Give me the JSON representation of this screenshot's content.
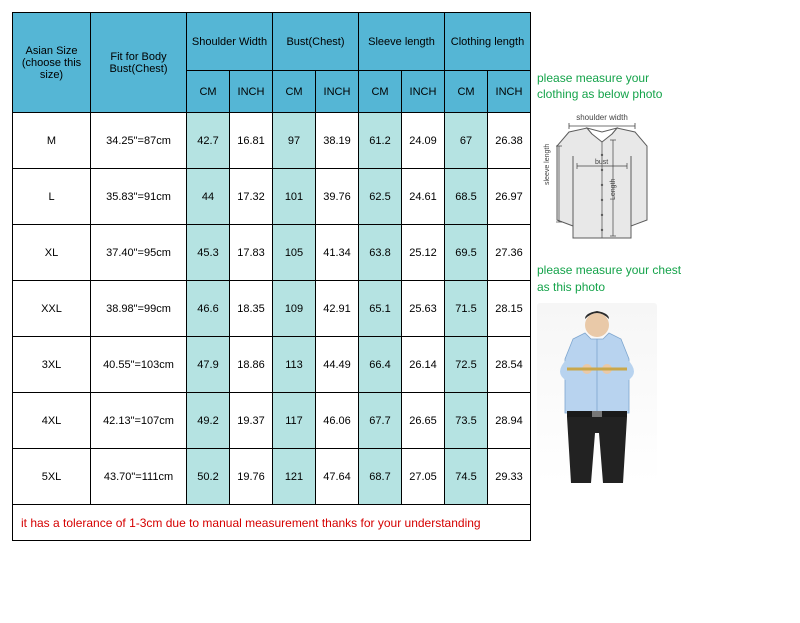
{
  "table": {
    "headers": {
      "asian_size": "Asian Size (choose this size)",
      "fit_for": "Fit for Body Bust(Chest)",
      "groups": [
        {
          "label": "Shoulder Width",
          "cm": "CM",
          "inch": "INCH"
        },
        {
          "label": "Bust(Chest)",
          "cm": "CM",
          "inch": "INCH"
        },
        {
          "label": "Sleeve length",
          "cm": "CM",
          "inch": "INCH"
        },
        {
          "label": "Clothing length",
          "cm": "CM",
          "inch": "INCH"
        }
      ]
    },
    "rows": [
      {
        "size": "M",
        "fit": "34.25\"=87cm",
        "m": [
          "42.7",
          "16.81",
          "97",
          "38.19",
          "61.2",
          "24.09",
          "67",
          "26.38"
        ]
      },
      {
        "size": "L",
        "fit": "35.83\"=91cm",
        "m": [
          "44",
          "17.32",
          "101",
          "39.76",
          "62.5",
          "24.61",
          "68.5",
          "26.97"
        ]
      },
      {
        "size": "XL",
        "fit": "37.40\"=95cm",
        "m": [
          "45.3",
          "17.83",
          "105",
          "41.34",
          "63.8",
          "25.12",
          "69.5",
          "27.36"
        ]
      },
      {
        "size": "XXL",
        "fit": "38.98\"=99cm",
        "m": [
          "46.6",
          "18.35",
          "109",
          "42.91",
          "65.1",
          "25.63",
          "71.5",
          "28.15"
        ]
      },
      {
        "size": "3XL",
        "fit": "40.55\"=103cm",
        "m": [
          "47.9",
          "18.86",
          "113",
          "44.49",
          "66.4",
          "26.14",
          "72.5",
          "28.54"
        ]
      },
      {
        "size": "4XL",
        "fit": "42.13\"=107cm",
        "m": [
          "49.2",
          "19.37",
          "117",
          "46.06",
          "67.7",
          "26.65",
          "73.5",
          "28.94"
        ]
      },
      {
        "size": "5XL",
        "fit": "43.70\"=111cm",
        "m": [
          "50.2",
          "19.76",
          "121",
          "47.64",
          "68.7",
          "27.05",
          "74.5",
          "29.33"
        ]
      }
    ],
    "footer": "it has a tolerance of 1-3cm due to manual measurement thanks for your understanding"
  },
  "side": {
    "instr_top": "please measure your clothing as below photo",
    "instr_bottom": "please measure your chest as this photo",
    "diagram_labels": {
      "shoulder": "shoulder width",
      "sleeve": "sleeve length",
      "bust": "bust",
      "length": "Length"
    }
  },
  "colors": {
    "header_blue": "#55b6d5",
    "cell_pale": "#b5e3e2",
    "border": "#000000",
    "footer_text": "#d50000",
    "instr_text": "#14a34a",
    "shirt_fill": "#e8e8e8",
    "shirt_stroke": "#5c5c5c",
    "person_shirt": "#b8d3ef",
    "person_skin": "#e9c9a8",
    "person_pants": "#222222"
  }
}
